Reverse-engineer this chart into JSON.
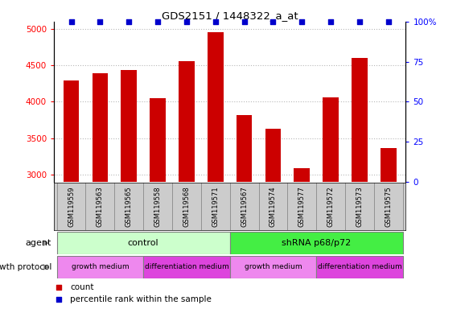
{
  "title": "GDS2151 / 1448322_a_at",
  "samples": [
    "GSM119559",
    "GSM119563",
    "GSM119565",
    "GSM119558",
    "GSM119568",
    "GSM119571",
    "GSM119567",
    "GSM119574",
    "GSM119577",
    "GSM119572",
    "GSM119573",
    "GSM119575"
  ],
  "counts": [
    4290,
    4390,
    4440,
    4050,
    4560,
    4960,
    3820,
    3630,
    3090,
    4060,
    4600,
    3360
  ],
  "percentiles": [
    100,
    100,
    100,
    100,
    100,
    100,
    100,
    100,
    100,
    100,
    100,
    100
  ],
  "ylim_left": [
    2900,
    5100
  ],
  "ylim_right": [
    0,
    100
  ],
  "yticks_left": [
    3000,
    3500,
    4000,
    4500,
    5000
  ],
  "yticks_right": [
    0,
    25,
    50,
    75,
    100
  ],
  "bar_color": "#cc0000",
  "percentile_color": "#0000cc",
  "agent_control_color": "#ccffcc",
  "agent_shrna_color": "#44ee44",
  "growth_medium_color": "#ee88ee",
  "diff_medium_color": "#dd44dd",
  "xticklabel_bg": "#cccccc",
  "grid_color": "#888888",
  "agent_label": "agent",
  "growth_label": "growth protocol",
  "control_text": "control",
  "shrna_text": "shRNA p68/p72",
  "growth_medium_text": "growth medium",
  "diff_medium_text": "differentiation medium",
  "legend_count_label": "count",
  "legend_percentile_label": "percentile rank within the sample"
}
